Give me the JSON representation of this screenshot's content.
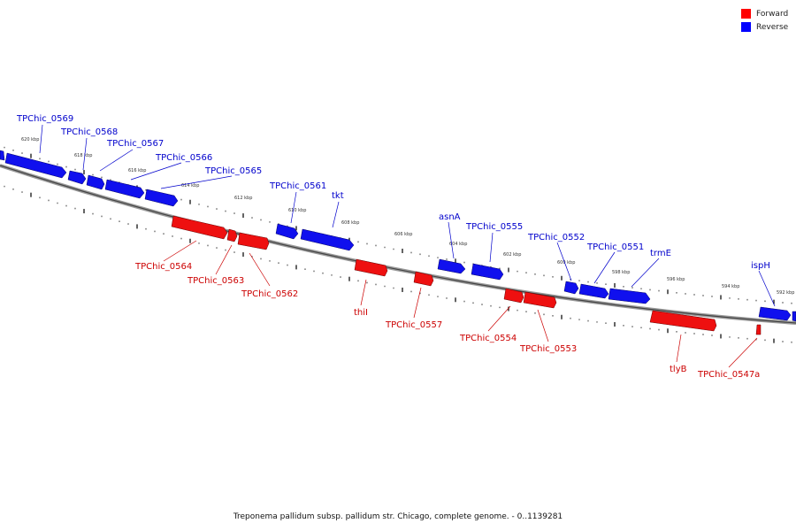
{
  "legend": {
    "forward_label": "Forward",
    "forward_color": "#ff0000",
    "reverse_label": "Reverse",
    "reverse_color": "#0000ff"
  },
  "caption": "Treponema pallidum subsp. pallidum str. Chicago, complete genome. - 0..1139281",
  "ticks": [
    "620 kbp",
    "618 kbp",
    "616 kbp",
    "614 kbp",
    "612 kbp",
    "610 kbp",
    "608 kbp",
    "606 kbp",
    "604 kbp",
    "602 kbp",
    "600 kbp",
    "598 kbp",
    "596 kbp",
    "594 kbp",
    "592 kbp"
  ],
  "reverse_genes": [
    "TPChic_0569",
    "TPChic_0568",
    "TPChic_0567",
    "TPChic_0566",
    "TPChic_0565",
    "TPChic_0561",
    "tkt",
    "asnA",
    "TPChic_0555",
    "TPChic_0552",
    "TPChic_0551",
    "trmE",
    "ispH"
  ],
  "forward_genes": [
    "TPChic_0564",
    "TPChic_0563",
    "TPChic_0562",
    "thiI",
    "TPChic_0557",
    "TPChic_0554",
    "TPChic_0553",
    "tlyB",
    "TPChic_0547a"
  ]
}
